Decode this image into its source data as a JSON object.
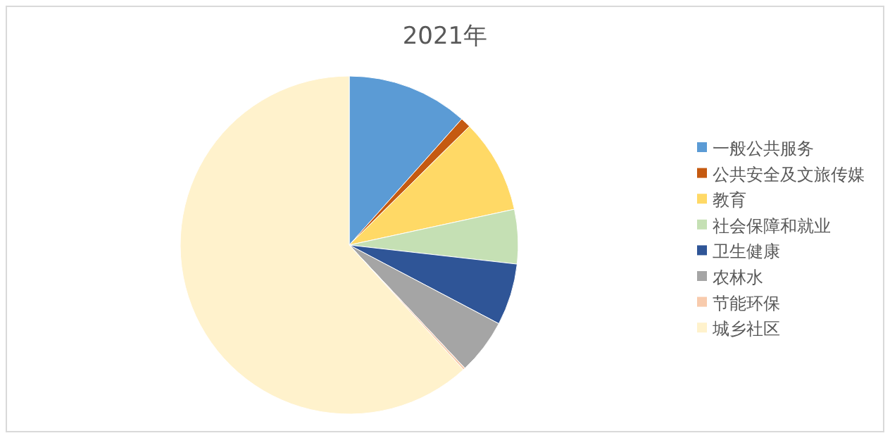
{
  "chart_data": {
    "type": "pie",
    "title": "2021年",
    "categories": [
      "一般公共服务",
      "公共安全及文旅传媒",
      "教育",
      "社会保障和就业",
      "卫生健康",
      "农林水",
      "节能环保",
      "城乡社区"
    ],
    "values": [
      11.6,
      1.0,
      9.0,
      5.2,
      5.9,
      5.3,
      0.2,
      61.8
    ],
    "colors": [
      "#5b9bd5",
      "#c55a11",
      "#ffd966",
      "#c5e0b4",
      "#2f5597",
      "#a5a5a5",
      "#f8cbad",
      "#fff2cc"
    ],
    "legend": "right"
  }
}
